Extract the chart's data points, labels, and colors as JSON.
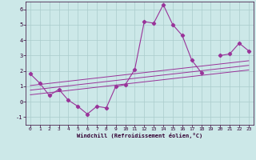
{
  "xlabel": "Windchill (Refroidissement éolien,°C)",
  "background_color": "#cce8e8",
  "grid_color": "#aacccc",
  "line_color": "#993399",
  "x_data": [
    0,
    1,
    2,
    3,
    4,
    5,
    6,
    7,
    8,
    9,
    10,
    11,
    12,
    13,
    14,
    15,
    16,
    17,
    18,
    19,
    20,
    21,
    22,
    23
  ],
  "y_main": [
    1.8,
    1.2,
    0.4,
    0.8,
    0.1,
    -0.3,
    -0.8,
    -0.3,
    -0.4,
    1.0,
    1.1,
    2.1,
    5.2,
    5.1,
    6.3,
    5.0,
    4.3,
    2.7,
    1.9,
    null,
    3.0,
    3.1,
    3.8,
    3.3
  ],
  "y_line1": [
    1.05,
    1.12,
    1.19,
    1.26,
    1.33,
    1.4,
    1.47,
    1.54,
    1.61,
    1.68,
    1.75,
    1.82,
    1.89,
    1.96,
    2.03,
    2.1,
    2.17,
    2.24,
    2.31,
    2.38,
    2.45,
    2.52,
    2.59,
    2.66
  ],
  "y_line2": [
    0.75,
    0.82,
    0.89,
    0.96,
    1.03,
    1.1,
    1.17,
    1.24,
    1.31,
    1.38,
    1.45,
    1.52,
    1.59,
    1.66,
    1.73,
    1.8,
    1.87,
    1.94,
    2.01,
    2.08,
    2.15,
    2.22,
    2.29,
    2.36
  ],
  "y_line3": [
    0.45,
    0.52,
    0.59,
    0.66,
    0.73,
    0.8,
    0.87,
    0.94,
    1.01,
    1.08,
    1.15,
    1.22,
    1.29,
    1.36,
    1.43,
    1.5,
    1.57,
    1.64,
    1.71,
    1.78,
    1.85,
    1.92,
    1.99,
    2.06
  ],
  "ylim": [
    -1.5,
    6.5
  ],
  "xlim": [
    -0.5,
    23.5
  ],
  "yticks": [
    -1,
    0,
    1,
    2,
    3,
    4,
    5,
    6
  ],
  "xticks": [
    0,
    1,
    2,
    3,
    4,
    5,
    6,
    7,
    8,
    9,
    10,
    11,
    12,
    13,
    14,
    15,
    16,
    17,
    18,
    19,
    20,
    21,
    22,
    23
  ]
}
